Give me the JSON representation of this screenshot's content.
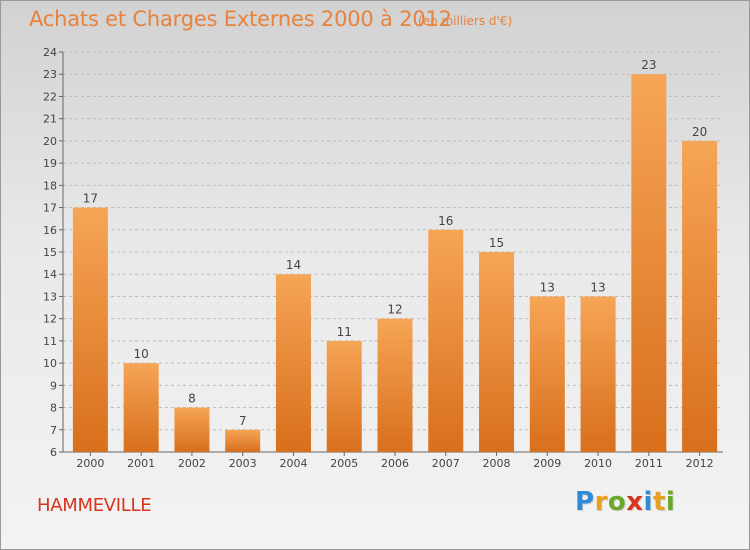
{
  "title": "Achats et Charges Externes 2000 à 2012",
  "unit": "(en milliers d'€)",
  "commune": "HAMMEVILLE",
  "logo": {
    "letters": [
      "P",
      "r",
      "o",
      "x",
      "i",
      "t",
      "i"
    ],
    "colors": [
      "#2e8bd8",
      "#e8a020",
      "#6aa82a",
      "#d8341e",
      "#2e8bd8",
      "#e8a020",
      "#6aa82a"
    ]
  },
  "colors": {
    "bar_light": "#f6a556",
    "bar_dark": "#d86f1c",
    "title": "#e8823c",
    "commune": "#d8341e"
  },
  "chart_data": {
    "type": "bar",
    "categories": [
      "2000",
      "2001",
      "2002",
      "2003",
      "2004",
      "2005",
      "2006",
      "2007",
      "2008",
      "2009",
      "2010",
      "2011",
      "2012"
    ],
    "values": [
      17,
      10,
      8,
      7,
      14,
      11,
      12,
      16,
      15,
      13,
      13,
      23,
      20
    ],
    "ylim": [
      6,
      24
    ],
    "yticks": [
      6,
      7,
      8,
      9,
      10,
      11,
      12,
      13,
      14,
      15,
      16,
      17,
      18,
      19,
      20,
      21,
      22,
      23,
      24
    ],
    "grid": "horizontal dashed",
    "legend": "none"
  }
}
